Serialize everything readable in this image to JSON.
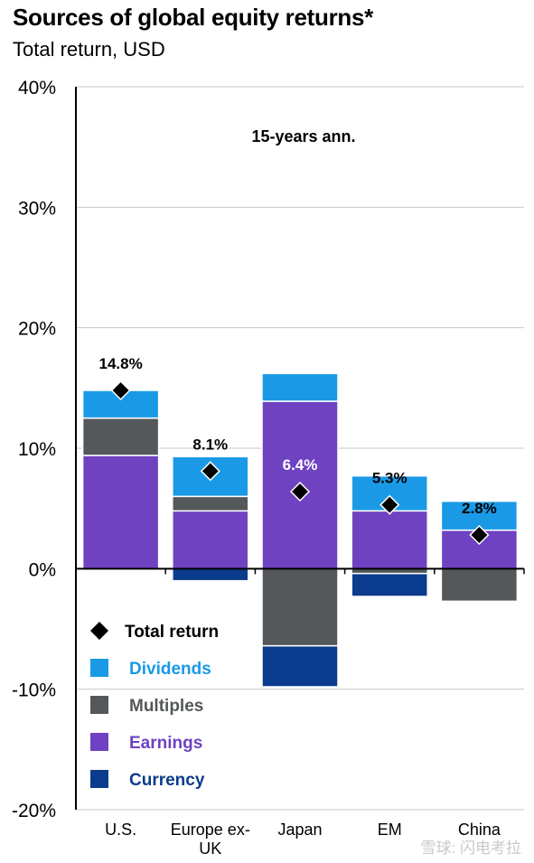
{
  "header": {
    "title": "Sources of global equity returns*",
    "subtitle": "Total return, USD"
  },
  "watermark": "雪球: 闪电考拉",
  "chart_data": {
    "type": "bar",
    "stacked": true,
    "annotation": "15-years ann.",
    "categories": [
      "U.S.",
      "Europe ex-UK",
      "Japan",
      "EM",
      "China"
    ],
    "category_lines": [
      [
        "U.S."
      ],
      [
        "Europe ex-",
        "UK"
      ],
      [
        "Japan"
      ],
      [
        "EM"
      ],
      [
        "China"
      ]
    ],
    "ylim": [
      -20,
      40
    ],
    "yticks": [
      -20,
      -10,
      0,
      10,
      20,
      30,
      40
    ],
    "ytick_labels": [
      "-20%",
      "-10%",
      "0%",
      "10%",
      "20%",
      "30%",
      "40%"
    ],
    "grid": true,
    "legend_position": "bottom-left",
    "series": [
      {
        "name": "Earnings",
        "color": "#6f42c1",
        "values": [
          9.4,
          4.8,
          13.9,
          4.8,
          3.2
        ]
      },
      {
        "name": "Multiples",
        "color": "#54585a",
        "values": [
          3.1,
          1.2,
          -6.4,
          -0.4,
          -2.7
        ]
      },
      {
        "name": "Dividends",
        "color": "#1a9ae6",
        "values": [
          2.3,
          3.3,
          2.3,
          2.9,
          2.4
        ]
      },
      {
        "name": "Currency",
        "color": "#0b3b8c",
        "values": [
          0,
          -1.0,
          -3.4,
          -1.9,
          0
        ]
      }
    ],
    "total_return": {
      "name": "Total return",
      "values": [
        14.8,
        8.1,
        6.4,
        5.3,
        2.8
      ],
      "labels": [
        "14.8%",
        "8.1%",
        "6.4%",
        "5.3%",
        "2.8%"
      ]
    },
    "legend": [
      {
        "key": "total",
        "label": "Total return",
        "color": "#000000",
        "marker": "diamond"
      },
      {
        "key": "dividends",
        "label": "Dividends",
        "color": "#1a9ae6",
        "marker": "square"
      },
      {
        "key": "multiples",
        "label": "Multiples",
        "color": "#54585a",
        "marker": "square"
      },
      {
        "key": "earnings",
        "label": "Earnings",
        "color": "#6f42c1",
        "marker": "square"
      },
      {
        "key": "currency",
        "label": "Currency",
        "color": "#0b3b8c",
        "marker": "square"
      }
    ]
  }
}
